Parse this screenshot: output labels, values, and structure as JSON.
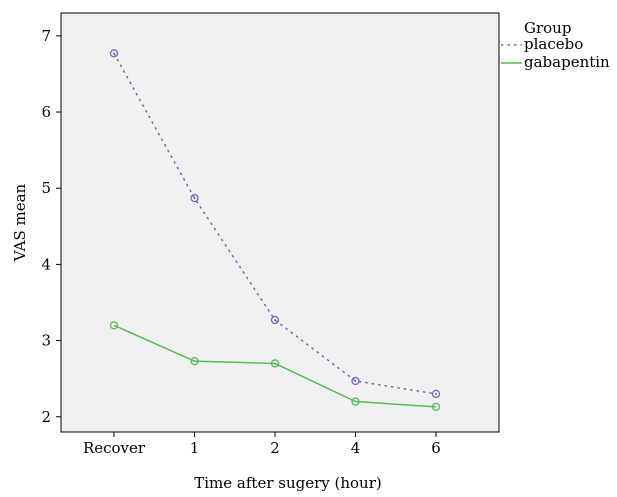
{
  "chart_data": {
    "type": "line",
    "xlabel": "Time after sugery (hour)",
    "ylabel": "VAS mean",
    "categories": [
      "Recover",
      "1",
      "2",
      "4",
      "6"
    ],
    "ylim": [
      1.8,
      7.3
    ],
    "yticks": [
      2,
      3,
      4,
      5,
      6,
      7
    ],
    "grid": false,
    "plot_background": "#f0f0f0",
    "legend": {
      "title": "Group",
      "placement": "right"
    },
    "series": [
      {
        "name": "placebo",
        "values": [
          6.77,
          4.87,
          3.27,
          2.47,
          2.3
        ],
        "color": "#6b6bc0",
        "dash": "dotted",
        "marker": "circle"
      },
      {
        "name": "gabapentin",
        "values": [
          3.2,
          2.73,
          2.7,
          2.2,
          2.13
        ],
        "color": "#55bb55",
        "dash": "solid",
        "marker": "circle"
      }
    ]
  }
}
